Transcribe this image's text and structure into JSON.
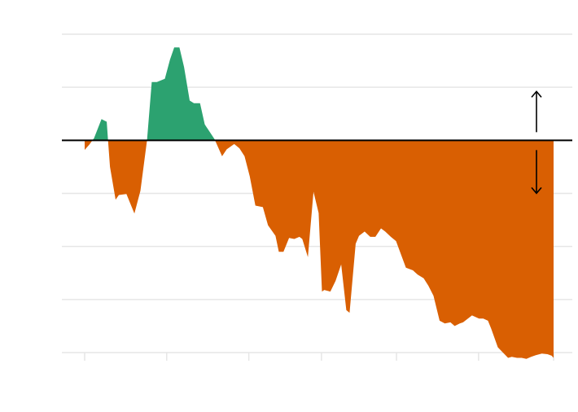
{
  "chart_data": {
    "type": "area",
    "title": "",
    "xlabel": "",
    "ylabel": "",
    "grid": true,
    "baseline": 0,
    "xlim": [
      0,
      100
    ],
    "ylim": [
      -4,
      2
    ],
    "y_gridlines": [
      -4,
      -3,
      -2,
      -1,
      0,
      1,
      2
    ],
    "x_ticks": [
      0,
      17.5,
      35,
      50.5,
      66.5,
      84,
      100
    ],
    "colors": {
      "positive": "#2ca270",
      "negative": "#d95f02",
      "grid": "#e6e6e6",
      "baseline": "#000000"
    },
    "indicators": [
      {
        "direction": "up",
        "icon": "arrow-up-icon"
      },
      {
        "direction": "down",
        "icon": "arrow-down-icon"
      }
    ],
    "series": [
      {
        "x": [
          0,
          1,
          2,
          3.6,
          4.7,
          5.4,
          6.6,
          7.3,
          8.9,
          10.6,
          11.9,
          13.3,
          14.3,
          15.4,
          17.1,
          18.2,
          19.1,
          20.2,
          21.2,
          22.4,
          23.3,
          24.6,
          25.6,
          27.7,
          29.3,
          30.3,
          31.9,
          33,
          34.1,
          35.2,
          36.4,
          38,
          39.1,
          40.7,
          41.4,
          42.4,
          43.6,
          44.7,
          45.8,
          46.4,
          47.6,
          48.8,
          49.9,
          50.6,
          51.1,
          52.4,
          53.5,
          54.7,
          55.8,
          56.5,
          57.8,
          58.5,
          59.7,
          60.9,
          62,
          63.2,
          64.1,
          65.3,
          66.4,
          68.5,
          70,
          71,
          72.3,
          73.3,
          74.4,
          75.7,
          76.8,
          78,
          78.9,
          80,
          80.7,
          82.6,
          84.1,
          85,
          86,
          86.7,
          88.1,
          89.2,
          90.3,
          91.1,
          92.2,
          93.2,
          94.2,
          95.2,
          96.2,
          97.5,
          98.7,
          99.6,
          100
        ],
        "y": [
          -0.18,
          -0.08,
          0.04,
          0.4,
          0.35,
          -0.5,
          -1.12,
          -1.03,
          -1.01,
          -1.38,
          -0.95,
          0,
          1.1,
          1.1,
          1.16,
          1.52,
          1.75,
          1.75,
          1.38,
          0.75,
          0.7,
          0.7,
          0.3,
          0.02,
          -0.3,
          -0.17,
          -0.07,
          -0.15,
          -0.3,
          -0.68,
          -1.23,
          -1.26,
          -1.6,
          -1.8,
          -2.1,
          -2.1,
          -1.84,
          -1.86,
          -1.82,
          -1.86,
          -2.2,
          -0.97,
          -1.37,
          -2.85,
          -2.82,
          -2.85,
          -2.65,
          -2.34,
          -3.2,
          -3.25,
          -1.95,
          -1.8,
          -1.72,
          -1.82,
          -1.82,
          -1.66,
          -1.72,
          -1.82,
          -1.9,
          -2.4,
          -2.45,
          -2.53,
          -2.6,
          -2.74,
          -2.93,
          -3.4,
          -3.45,
          -3.43,
          -3.5,
          -3.45,
          -3.43,
          -3.3,
          -3.36,
          -3.36,
          -3.4,
          -3.55,
          -3.9,
          -4.0,
          -4.1,
          -4.08,
          -4.1,
          -4.1,
          -4.12,
          -4.08,
          -4.05,
          -4.02,
          -4.03,
          -4.06,
          -4.1
        ]
      }
    ]
  }
}
